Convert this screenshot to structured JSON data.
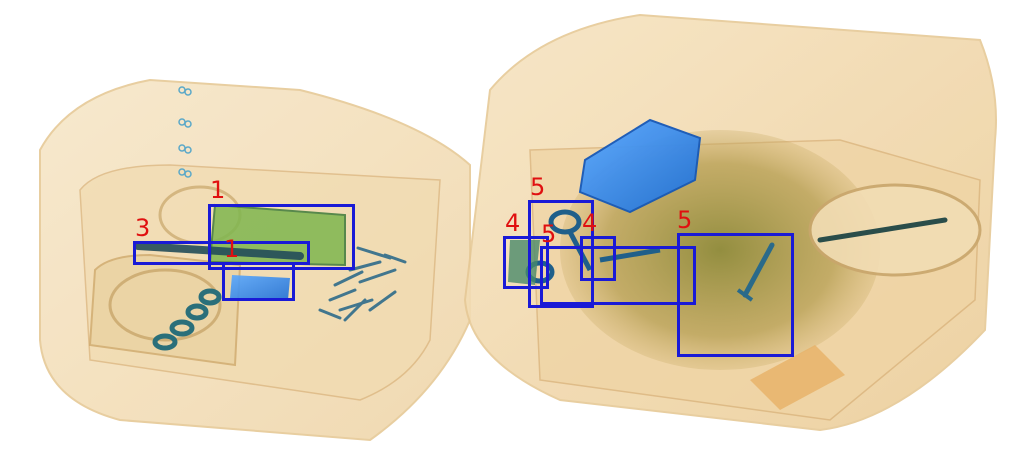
{
  "image": {
    "description_kind": "x-ray baggage scan",
    "colors": {
      "box_stroke": "#1a1ad6",
      "label_text": "#e01010",
      "bag_fill": "#f3dcb4",
      "bag_edge": "#d9b27a",
      "organic_dark": "#9a8a3a",
      "metal_blue": "#2f86e8",
      "metal_teal": "#2a6f7a"
    }
  },
  "detections": [
    {
      "label": "1"
    },
    {
      "label": "3"
    },
    {
      "label": "1"
    },
    {
      "label": "5"
    },
    {
      "label": "4"
    },
    {
      "label": "5"
    },
    {
      "label": "4"
    },
    {
      "label": "5"
    }
  ]
}
